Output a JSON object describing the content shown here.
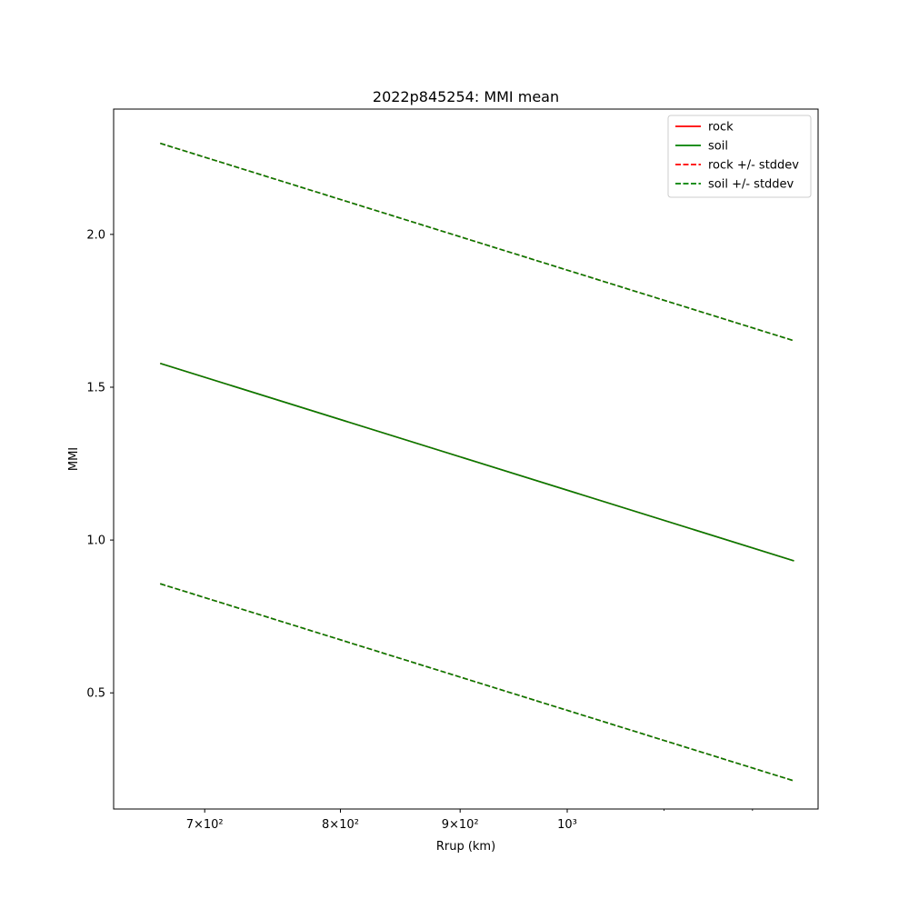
{
  "chart_data": {
    "type": "line",
    "title": "2022p845254: MMI mean",
    "xlabel": "Rrup (km)",
    "ylabel": "MMI",
    "xscale": "log",
    "xlim": [
      640,
      1280
    ],
    "ylim": [
      0.12,
      2.41
    ],
    "x_ticks": [
      700,
      800,
      900,
      1000
    ],
    "x_tick_labels": [
      "7×10²",
      "8×10²",
      "9×10²",
      "10³"
    ],
    "y_ticks": [
      0.5,
      1.0,
      1.5,
      2.0
    ],
    "y_tick_labels": [
      "0.5",
      "1.0",
      "1.5",
      "2.0"
    ],
    "grid": false,
    "legend_position": "top-right",
    "series": [
      {
        "name": "rock",
        "color": "#ff0000",
        "dash": "solid",
        "x": [
          670,
          1250
        ],
        "y": [
          1.578,
          0.932
        ]
      },
      {
        "name": "soil",
        "color": "#008000",
        "dash": "solid",
        "x": [
          670,
          1250
        ],
        "y": [
          1.578,
          0.932
        ]
      },
      {
        "name": "rock +/- stddev",
        "color": "#ff0000",
        "dash": "dashed",
        "x": [
          670,
          1250
        ],
        "y": [
          2.298,
          1.652
        ]
      },
      {
        "name": "soil +/- stddev",
        "color": "#008000",
        "dash": "dashed",
        "x": [
          670,
          1250
        ],
        "y": [
          2.298,
          1.652
        ]
      },
      {
        "name": "rock +/- stddev",
        "color": "#ff0000",
        "dash": "dashed",
        "x": [
          670,
          1250
        ],
        "y": [
          0.857,
          0.212
        ],
        "legend": false
      },
      {
        "name": "soil +/- stddev",
        "color": "#008000",
        "dash": "dashed",
        "x": [
          670,
          1250
        ],
        "y": [
          0.857,
          0.212
        ],
        "legend": false
      }
    ]
  }
}
